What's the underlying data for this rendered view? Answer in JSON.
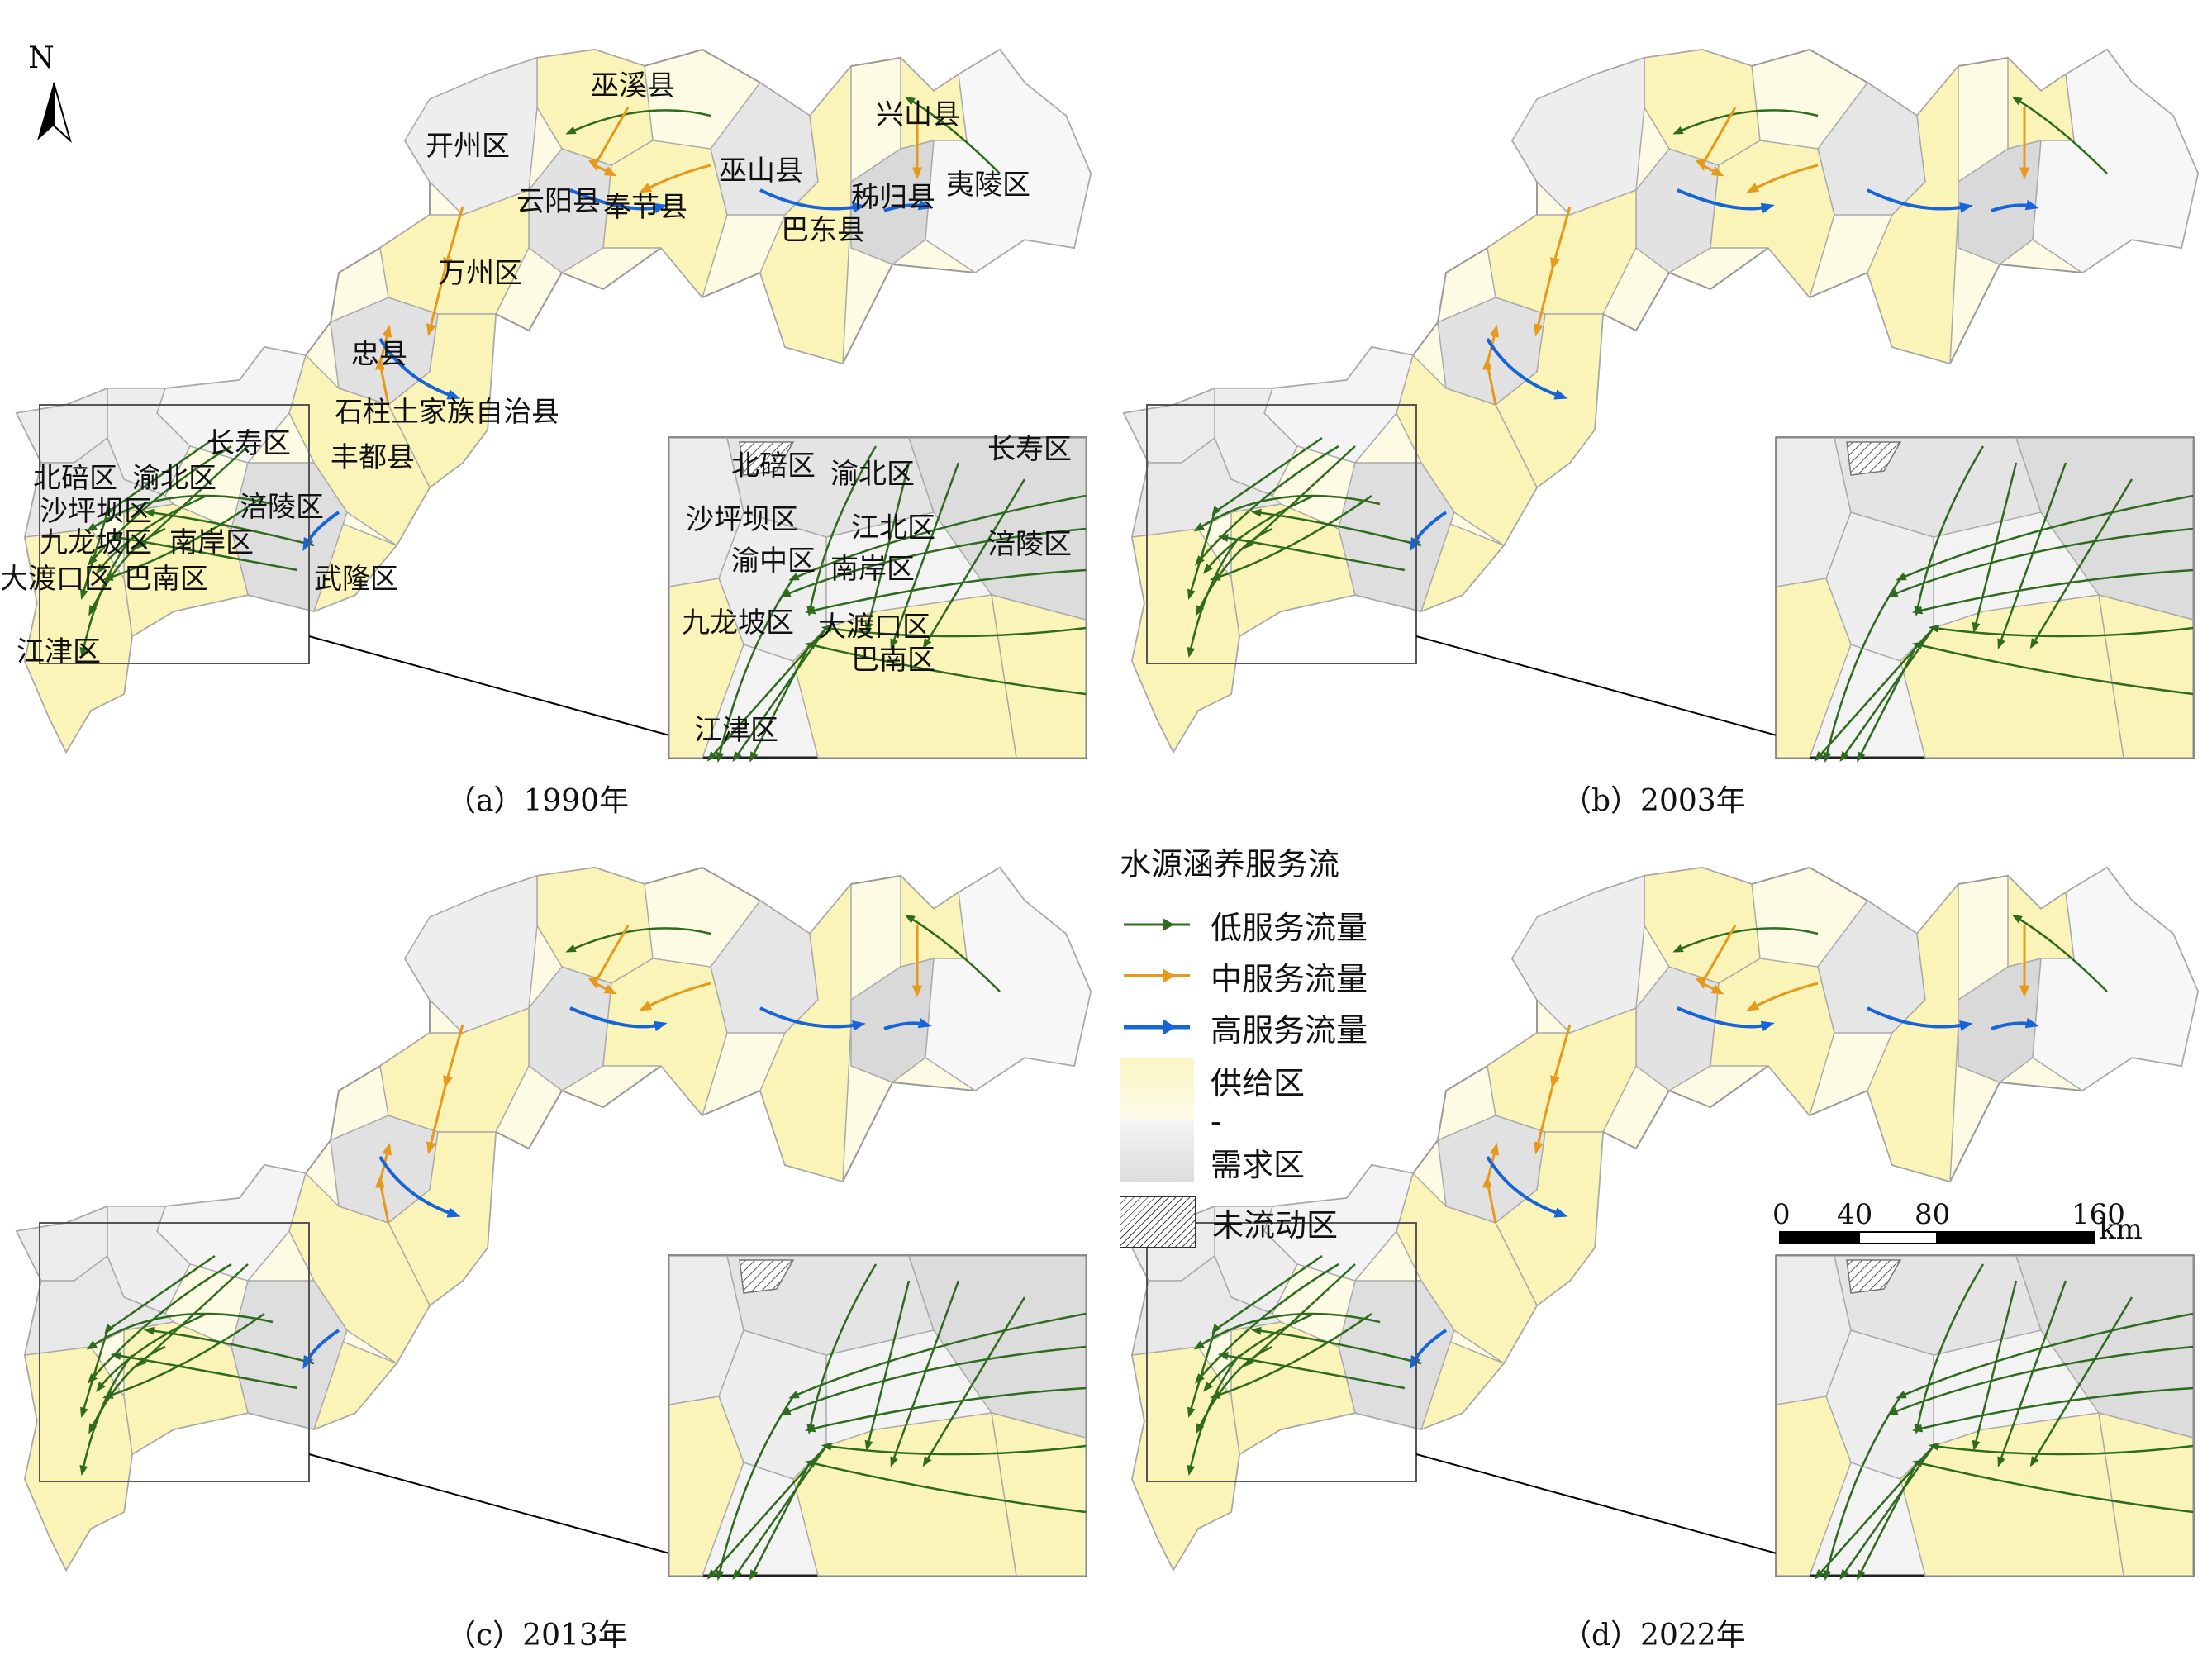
{
  "north": "N",
  "panels": [
    {
      "id": "a",
      "caption": "（a）1990年"
    },
    {
      "id": "b",
      "caption": "（b）2003年"
    },
    {
      "id": "c",
      "caption": "（c）2013年"
    },
    {
      "id": "d",
      "caption": "（d）2022年"
    }
  ],
  "main_labels": [
    "巫溪县",
    "兴山县",
    "开州区",
    "巫山县",
    "云阳县",
    "奉节县",
    "秭归县",
    "夷陵区",
    "巴东县",
    "万州区",
    "忠县",
    "石柱土家族自治县",
    "长寿区",
    "丰都县",
    "北碚区",
    "渝北区",
    "沙坪坝区",
    "涪陵区",
    "九龙坡区",
    "南岸区",
    "大渡口区",
    "巴南区",
    "武隆区",
    "江津区"
  ],
  "inset_labels": [
    "北碚区",
    "渝北区",
    "长寿区",
    "沙坪坝区",
    "江北区",
    "涪陵区",
    "渝中区",
    "南岸区",
    "九龙坡区",
    "大渡口区",
    "巴南区",
    "江津区"
  ],
  "legend": {
    "title": "水源涵养服务流",
    "low": "低服务流量",
    "mid": "中服务流量",
    "high": "高服务流量",
    "supply": "供给区",
    "dash": "-",
    "demand": "需求区",
    "noflow": "未流动区",
    "colors": {
      "low": "#2e6b1e",
      "mid": "#e69a1c",
      "high": "#1764d8",
      "supply": "#fbf6c4",
      "demand": "#dcdcdc"
    }
  },
  "scale": {
    "ticks": [
      "0",
      "40",
      "80",
      "160"
    ],
    "unit": "km"
  }
}
